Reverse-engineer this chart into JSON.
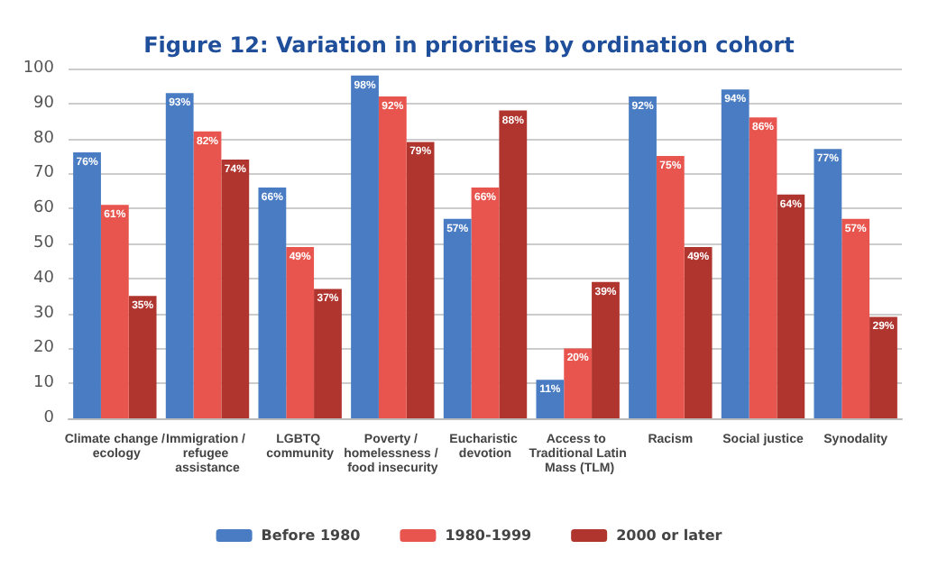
{
  "chart_data": {
    "type": "bar",
    "title": "Figure 12: Variation in priorities by ordination cohort",
    "categories": [
      "Climate change / ecology",
      "Immigration / refugee assistance",
      "LGBTQ community",
      "Poverty / homelessness / food insecurity",
      "Eucharistic devotion",
      "Access to Traditional Latin Mass (TLM)",
      "Racism",
      "Social justice",
      "Synodality"
    ],
    "series": [
      {
        "name": "Before 1980",
        "color": "#4a7cc4",
        "values": [
          76,
          93,
          66,
          98,
          57,
          11,
          92,
          94,
          77
        ],
        "value_labels": [
          "76%",
          "93%",
          "66%",
          "98%",
          "57%",
          "11%",
          "92%",
          "94%",
          "77%"
        ]
      },
      {
        "name": "1980-1999",
        "color": "#e8554e",
        "values": [
          61,
          82,
          49,
          92,
          66,
          20,
          75,
          86,
          57
        ],
        "value_labels": [
          "61%",
          "82%",
          "49%",
          "92%",
          "66%",
          "20%",
          "75%",
          "86%",
          "57%"
        ]
      },
      {
        "name": "2000 or later",
        "color": "#b0352f",
        "values": [
          35,
          74,
          37,
          79,
          88,
          39,
          49,
          64,
          29
        ],
        "value_labels": [
          "35%",
          "74%",
          "37%",
          "79%",
          "88%",
          "39%",
          "49%",
          "64%",
          "29%"
        ]
      }
    ],
    "ylim": [
      0,
      100
    ],
    "yticks": [
      0,
      10,
      20,
      30,
      40,
      50,
      60,
      70,
      80,
      90,
      100
    ],
    "grid": "y",
    "legend": "bottom"
  }
}
